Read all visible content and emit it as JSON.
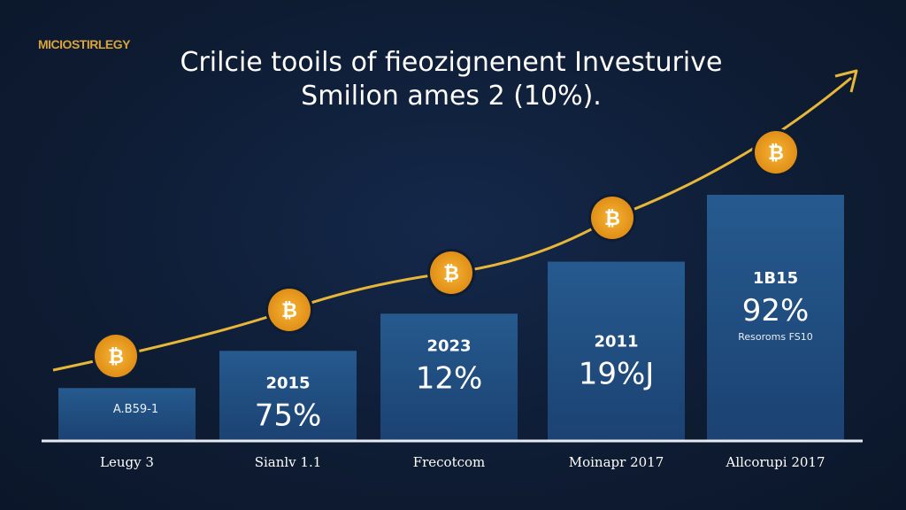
{
  "brand": "MICIOSTIRLEGY",
  "chart_data": {
    "type": "bar",
    "title": "Crilcie tooils of fieozignenent Investurive",
    "subtitle": "Smilion ames 2 (10%).",
    "categories": [
      "Leugy 3",
      "Sianlv 1.1",
      "Frecotcom",
      "Moinapr 2017",
      "Allcorupi 2017"
    ],
    "values": [
      21,
      36,
      51,
      72,
      99
    ],
    "ylim": [
      0,
      100
    ],
    "xlabel": "",
    "ylabel": "",
    "grid": false,
    "bar_labels": [
      {
        "year": "A.B59-1",
        "value": "",
        "note": ""
      },
      {
        "year": "2015",
        "value": "75%",
        "note": ""
      },
      {
        "year": "2023",
        "value": "12%",
        "note": ""
      },
      {
        "year": "2011",
        "value": "19%J",
        "note": ""
      },
      {
        "year": "1B15",
        "value": "92%",
        "note": "Resoroms FS10"
      }
    ],
    "trend_line": {
      "label": "growth arrow",
      "marker": "bitcoin-coin",
      "marker_symbol": "₿"
    },
    "colors": {
      "bar": "#1f4a7a",
      "line": "#e8b73a",
      "coin": "#f0a024",
      "background": "#0f1d33"
    }
  }
}
